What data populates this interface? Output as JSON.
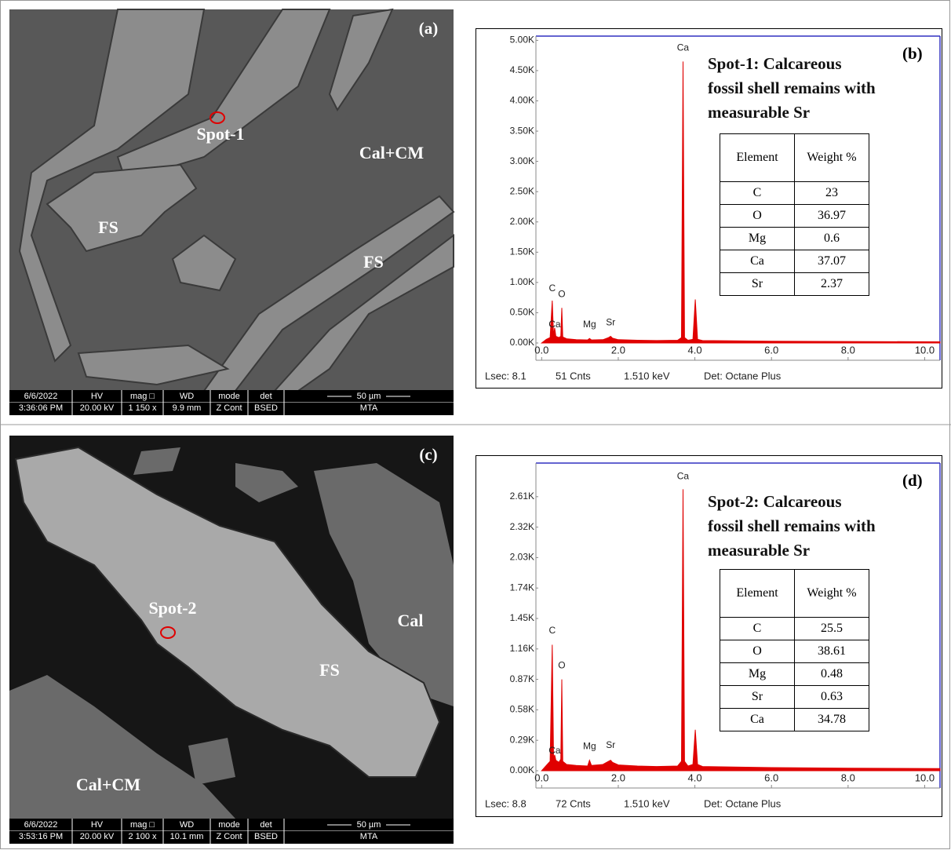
{
  "chart_data": [
    {
      "type": "area",
      "panel_label": "(b)",
      "title": "Spot-1: Calcareous fossil shell remains with measurable Sr",
      "color": "#e00000",
      "x": [
        0,
        0.12,
        0.22,
        0.277,
        0.31,
        0.34,
        0.37,
        0.45,
        0.5,
        0.525,
        0.55,
        0.65,
        0.9,
        1.2,
        1.25,
        1.3,
        1.6,
        1.75,
        1.8,
        1.85,
        2.0,
        2.5,
        3.0,
        3.55,
        3.65,
        3.69,
        3.73,
        3.82,
        3.95,
        4.01,
        4.07,
        4.2,
        5.0,
        6.0,
        8.0,
        10.4
      ],
      "values": [
        0,
        60,
        90,
        700,
        120,
        250,
        110,
        90,
        110,
        580,
        100,
        70,
        55,
        50,
        75,
        50,
        55,
        90,
        110,
        80,
        55,
        45,
        40,
        45,
        90,
        4650,
        90,
        45,
        60,
        720,
        60,
        40,
        35,
        30,
        25,
        20
      ],
      "xlim": [
        -0.15,
        10.4
      ],
      "ylim": [
        0,
        5070
      ],
      "xticks": [
        {
          "value": 0,
          "label": "0.0"
        },
        {
          "value": 2,
          "label": "2.0"
        },
        {
          "value": 4,
          "label": "4.0"
        },
        {
          "value": 6,
          "label": "6.0"
        },
        {
          "value": 8,
          "label": "8.0"
        },
        {
          "value": 10,
          "label": "10.0"
        }
      ],
      "yticks": [
        {
          "value": 0,
          "label": "0.00K"
        },
        {
          "value": 500,
          "label": "0.50K"
        },
        {
          "value": 1000,
          "label": "1.00K"
        },
        {
          "value": 1500,
          "label": "1.50K"
        },
        {
          "value": 2000,
          "label": "2.00K"
        },
        {
          "value": 2500,
          "label": "2.50K"
        },
        {
          "value": 3000,
          "label": "3.00K"
        },
        {
          "value": 3500,
          "label": "3.50K"
        },
        {
          "value": 4000,
          "label": "4.00K"
        },
        {
          "value": 4500,
          "label": "4.50K"
        },
        {
          "value": 5000,
          "label": "5.00K"
        }
      ],
      "annotations": [
        {
          "text": "Ca",
          "x": 3.69,
          "y": 4870
        },
        {
          "text": "C",
          "x": 0.277,
          "y": 900
        },
        {
          "text": "O",
          "x": 0.525,
          "y": 800
        },
        {
          "text": "Ca",
          "x": 0.34,
          "y": 300
        },
        {
          "text": "Mg",
          "x": 1.25,
          "y": 300
        },
        {
          "text": "Sr",
          "x": 1.8,
          "y": 330
        }
      ],
      "table": {
        "header": [
          "Element",
          "Weight %"
        ],
        "rows": [
          [
            "C",
            23
          ],
          [
            "O",
            36.97
          ],
          [
            "Mg",
            0.6
          ],
          [
            "Ca",
            37.07
          ],
          [
            "Sr",
            2.37
          ]
        ]
      },
      "footer": [
        "Lsec: 8.1",
        "51 Cnts",
        "1.510 keV",
        "Det: Octane Plus"
      ]
    },
    {
      "type": "area",
      "panel_label": "(d)",
      "title": "Spot-2: Calcareous fossil shell remains with measurable Sr",
      "color": "#e00000",
      "x": [
        0,
        0.12,
        0.22,
        0.277,
        0.31,
        0.34,
        0.37,
        0.45,
        0.5,
        0.525,
        0.55,
        0.65,
        0.9,
        1.2,
        1.25,
        1.3,
        1.6,
        1.75,
        1.8,
        1.85,
        2.0,
        2.5,
        3.0,
        3.55,
        3.65,
        3.69,
        3.73,
        3.82,
        3.95,
        4.01,
        4.07,
        4.2,
        5.0,
        6.0,
        8.0,
        10.4
      ],
      "values": [
        0,
        50,
        90,
        1200,
        110,
        150,
        100,
        80,
        110,
        870,
        90,
        60,
        50,
        45,
        100,
        50,
        60,
        90,
        100,
        80,
        55,
        45,
        40,
        45,
        90,
        2680,
        90,
        45,
        60,
        390,
        60,
        40,
        35,
        30,
        25,
        20
      ],
      "xlim": [
        -0.15,
        10.4
      ],
      "ylim": [
        0,
        2930
      ],
      "xticks": [
        {
          "value": 0,
          "label": "0.0"
        },
        {
          "value": 2,
          "label": "2.0"
        },
        {
          "value": 4,
          "label": "4.0"
        },
        {
          "value": 6,
          "label": "6.0"
        },
        {
          "value": 8,
          "label": "8.0"
        },
        {
          "value": 10,
          "label": "10.0"
        }
      ],
      "yticks": [
        {
          "value": 0,
          "label": "0.00K"
        },
        {
          "value": 290,
          "label": "0.29K"
        },
        {
          "value": 580,
          "label": "0.58K"
        },
        {
          "value": 870,
          "label": "0.87K"
        },
        {
          "value": 1160,
          "label": "1.16K"
        },
        {
          "value": 1450,
          "label": "1.45K"
        },
        {
          "value": 1740,
          "label": "1.74K"
        },
        {
          "value": 2030,
          "label": "2.03K"
        },
        {
          "value": 2320,
          "label": "2.32K"
        },
        {
          "value": 2610,
          "label": "2.61K"
        }
      ],
      "annotations": [
        {
          "text": "Ca",
          "x": 3.69,
          "y": 2800
        },
        {
          "text": "C",
          "x": 0.277,
          "y": 1330
        },
        {
          "text": "O",
          "x": 0.525,
          "y": 1000
        },
        {
          "text": "Ca",
          "x": 0.34,
          "y": 190
        },
        {
          "text": "Mg",
          "x": 1.25,
          "y": 230
        },
        {
          "text": "Sr",
          "x": 1.8,
          "y": 240
        }
      ],
      "table": {
        "header": [
          "Element",
          "Weight %"
        ],
        "rows": [
          [
            "C",
            25.5
          ],
          [
            "O",
            38.61
          ],
          [
            "Mg",
            0.48
          ],
          [
            "Sr",
            0.63
          ],
          [
            "Ca",
            34.78
          ]
        ]
      },
      "footer": [
        "Lsec: 8.8",
        "72 Cnts",
        "1.510 keV",
        "Det: Octane Plus"
      ]
    }
  ],
  "sem_images": [
    {
      "panel_label": "(a)",
      "labels": [
        "Spot-1",
        "Cal+CM",
        "FS",
        "FS"
      ],
      "info_bar": [
        [
          "6/6/2022",
          "3:36:06 PM"
        ],
        [
          "HV",
          "20.00 kV"
        ],
        [
          "mag □",
          "1 150 x"
        ],
        [
          "WD",
          "9.9 mm"
        ],
        [
          "mode",
          "Z Cont"
        ],
        [
          "det",
          "BSED"
        ],
        [
          "50 µm",
          "MTA"
        ]
      ]
    },
    {
      "panel_label": "(c)",
      "labels": [
        "Spot-2",
        "FS",
        "Cal",
        "Cal+CM"
      ],
      "info_bar": [
        [
          "6/6/2022",
          "3:53:16 PM"
        ],
        [
          "HV",
          "20.00 kV"
        ],
        [
          "mag □",
          "2 100 x"
        ],
        [
          "WD",
          "10.1 mm"
        ],
        [
          "mode",
          "Z Cont"
        ],
        [
          "det",
          "BSED"
        ],
        [
          "50 µm",
          "MTA"
        ]
      ]
    }
  ]
}
